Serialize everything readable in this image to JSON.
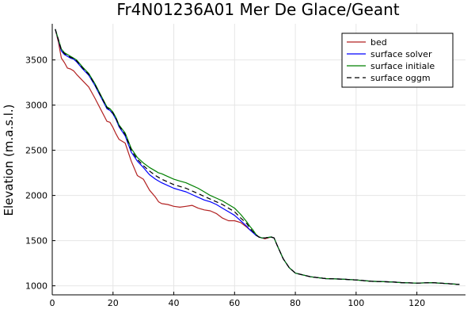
{
  "chart_data": {
    "type": "line",
    "title": "Fr4N01236A01 Mer De Glace/Geant",
    "xlabel": "",
    "ylabel": "Elevation (m.a.s.l.)",
    "xlim": [
      0,
      136
    ],
    "ylim": [
      900,
      3900
    ],
    "xticks": [
      0,
      20,
      40,
      60,
      80,
      100,
      120
    ],
    "yticks": [
      1000,
      1500,
      2000,
      2500,
      3000,
      3500
    ],
    "grid": true,
    "legend_position": "top-right",
    "series": [
      {
        "name": "bed",
        "color": "#b22222",
        "dash": false,
        "x": [
          1,
          2,
          3,
          4,
          5,
          6,
          7,
          8,
          10,
          12,
          14,
          16,
          18,
          19,
          20,
          21,
          22,
          24,
          26,
          28,
          30,
          32,
          34,
          35,
          36,
          38,
          40,
          42,
          44,
          46,
          48,
          50,
          52,
          54,
          56,
          58,
          60,
          62,
          64,
          65,
          66,
          67,
          68,
          69,
          70,
          71,
          72,
          73,
          74,
          76,
          78,
          80,
          85,
          90,
          95,
          100,
          105,
          110,
          113,
          115,
          120,
          125,
          130,
          134
        ],
        "y": [
          3840,
          3700,
          3520,
          3470,
          3410,
          3400,
          3380,
          3340,
          3270,
          3200,
          3080,
          2950,
          2820,
          2810,
          2750,
          2680,
          2620,
          2580,
          2380,
          2220,
          2180,
          2060,
          1980,
          1930,
          1910,
          1900,
          1880,
          1870,
          1880,
          1890,
          1860,
          1840,
          1830,
          1800,
          1750,
          1720,
          1720,
          1700,
          1650,
          1620,
          1600,
          1560,
          1540,
          1530,
          1520,
          1530,
          1540,
          1530,
          1450,
          1300,
          1200,
          1140,
          1100,
          1080,
          1075,
          1065,
          1050,
          1045,
          1040,
          1035,
          1030,
          1035,
          1025,
          1015
        ]
      },
      {
        "name": "surface solver",
        "color": "#0000ff",
        "dash": false,
        "x": [
          1,
          2,
          3,
          4,
          5,
          6,
          7,
          8,
          10,
          12,
          14,
          16,
          18,
          19,
          20,
          21,
          22,
          24,
          26,
          28,
          30,
          32,
          34,
          35,
          36,
          38,
          40,
          42,
          44,
          46,
          48,
          50,
          52,
          54,
          56,
          58,
          60,
          62,
          64,
          65,
          66,
          67,
          68,
          69,
          70,
          71,
          72,
          73,
          74,
          76,
          78,
          80,
          85,
          90,
          95,
          100,
          105,
          110,
          113,
          115,
          120,
          125,
          130,
          134
        ],
        "y": [
          3840,
          3720,
          3600,
          3560,
          3540,
          3520,
          3510,
          3480,
          3400,
          3330,
          3220,
          3090,
          2960,
          2940,
          2900,
          2840,
          2760,
          2660,
          2480,
          2380,
          2310,
          2230,
          2180,
          2160,
          2140,
          2110,
          2080,
          2060,
          2040,
          2010,
          1980,
          1950,
          1930,
          1900,
          1860,
          1820,
          1780,
          1720,
          1660,
          1620,
          1590,
          1560,
          1540,
          1530,
          1530,
          1535,
          1540,
          1530,
          1450,
          1300,
          1200,
          1140,
          1100,
          1080,
          1075,
          1065,
          1050,
          1045,
          1040,
          1035,
          1030,
          1035,
          1025,
          1015
        ]
      },
      {
        "name": "surface initiale",
        "color": "#008000",
        "dash": false,
        "x": [
          1,
          2,
          3,
          4,
          5,
          6,
          7,
          8,
          10,
          12,
          14,
          16,
          18,
          19,
          20,
          21,
          22,
          24,
          26,
          28,
          30,
          32,
          34,
          35,
          36,
          38,
          40,
          42,
          44,
          46,
          48,
          50,
          52,
          54,
          56,
          58,
          60,
          62,
          64,
          65,
          66,
          67,
          68,
          69,
          70,
          71,
          72,
          73,
          74,
          76,
          78,
          80,
          85,
          90,
          95,
          100,
          105,
          110,
          113,
          115,
          120,
          125,
          130,
          134
        ],
        "y": [
          3840,
          3730,
          3620,
          3580,
          3560,
          3540,
          3520,
          3500,
          3420,
          3350,
          3240,
          3110,
          2980,
          2960,
          2920,
          2860,
          2780,
          2690,
          2520,
          2420,
          2360,
          2310,
          2270,
          2250,
          2240,
          2210,
          2180,
          2160,
          2140,
          2110,
          2080,
          2040,
          2000,
          1970,
          1940,
          1900,
          1860,
          1790,
          1710,
          1660,
          1620,
          1570,
          1540,
          1530,
          1530,
          1535,
          1540,
          1530,
          1450,
          1300,
          1200,
          1140,
          1100,
          1080,
          1075,
          1065,
          1050,
          1045,
          1040,
          1035,
          1030,
          1035,
          1025,
          1015
        ]
      },
      {
        "name": "surface oggm",
        "color": "#000000",
        "dash": true,
        "x": [
          1,
          2,
          3,
          4,
          5,
          6,
          7,
          8,
          10,
          12,
          14,
          16,
          18,
          19,
          20,
          21,
          22,
          24,
          26,
          28,
          30,
          32,
          34,
          35,
          36,
          38,
          40,
          42,
          44,
          46,
          48,
          50,
          52,
          54,
          56,
          58,
          60,
          62,
          64,
          65,
          66,
          67,
          68,
          69,
          70,
          71,
          72,
          73,
          74,
          76,
          78,
          80,
          85,
          90,
          95,
          100,
          105,
          110,
          113,
          115,
          120,
          125,
          130,
          134
        ],
        "y": [
          3840,
          3725,
          3610,
          3570,
          3550,
          3530,
          3515,
          3490,
          3410,
          3340,
          3230,
          3100,
          2970,
          2950,
          2910,
          2850,
          2770,
          2675,
          2500,
          2400,
          2330,
          2270,
          2220,
          2200,
          2180,
          2150,
          2120,
          2100,
          2080,
          2050,
          2020,
          1990,
          1960,
          1930,
          1900,
          1860,
          1820,
          1750,
          1690,
          1640,
          1600,
          1565,
          1540,
          1530,
          1530,
          1535,
          1540,
          1530,
          1450,
          1300,
          1200,
          1140,
          1100,
          1080,
          1075,
          1065,
          1050,
          1045,
          1040,
          1035,
          1030,
          1035,
          1025,
          1015
        ]
      }
    ]
  }
}
